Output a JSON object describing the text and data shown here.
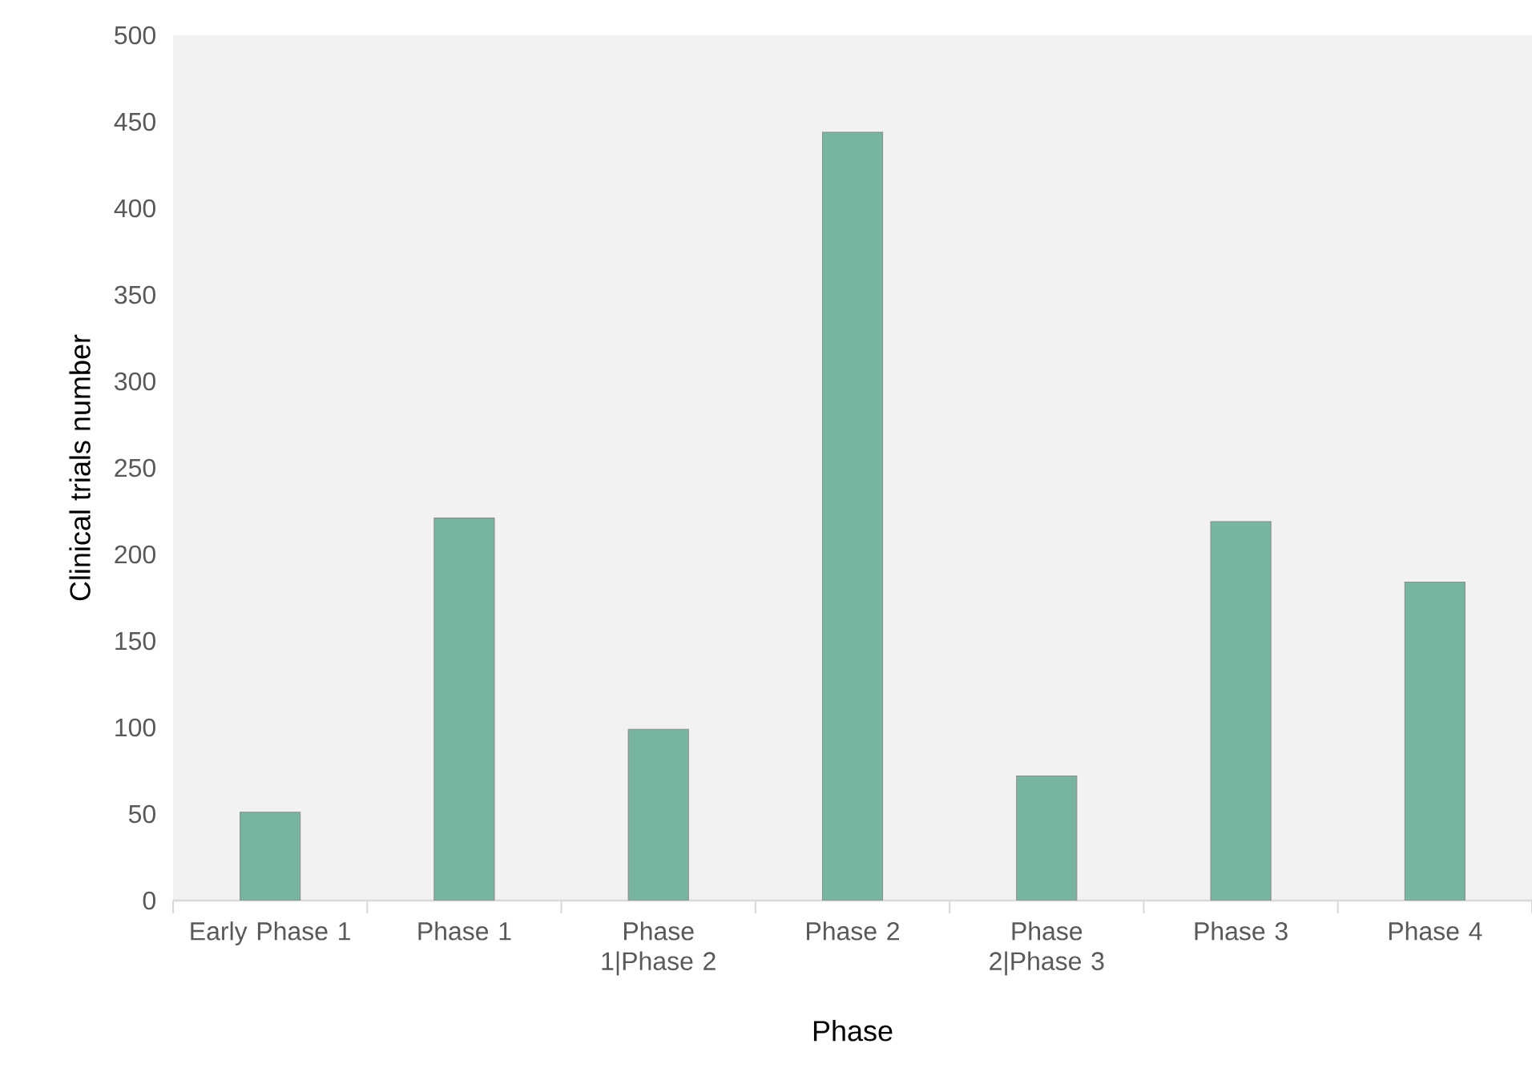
{
  "chart_data": {
    "type": "bar",
    "xlabel": "Phase",
    "ylabel": "Clinical trials number",
    "categories": [
      "Early Phase 1",
      "Phase 1",
      "Phase 1|Phase 2",
      "Phase 2",
      "Phase 2|Phase 3",
      "Phase 3",
      "Phase 4"
    ],
    "values": [
      51,
      221,
      99,
      444,
      72,
      219,
      184
    ],
    "color": "#78b5a0",
    "ylim": [
      0,
      500
    ],
    "yticks": [
      0,
      50,
      100,
      150,
      200,
      250,
      300,
      350,
      400,
      450,
      500
    ],
    "grid": false
  }
}
